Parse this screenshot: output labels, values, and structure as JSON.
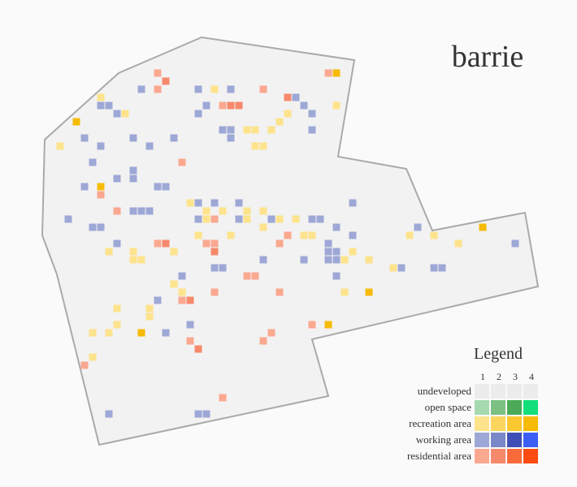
{
  "map": {
    "title": "barrie",
    "boundary_color": "#aaaaaa",
    "fill_color": "#f2f2f2"
  },
  "legend": {
    "title": "Legend",
    "levels": [
      "1",
      "2",
      "3",
      "4"
    ],
    "categories": [
      {
        "key": "undeveloped",
        "label": "undeveloped",
        "colors": [
          "#ececec",
          "#ececec",
          "#ececec",
          "#ececec"
        ]
      },
      {
        "key": "open",
        "label": "open space",
        "colors": [
          "#a6d9ad",
          "#7cc183",
          "#4aaa58",
          "#12df7a"
        ]
      },
      {
        "key": "recreation",
        "label": "recreation area",
        "colors": [
          "#fde38c",
          "#fcd55e",
          "#fbc730",
          "#f6bb07"
        ]
      },
      {
        "key": "working",
        "label": "working area",
        "colors": [
          "#9ea8d6",
          "#7b88c8",
          "#3f4fb5",
          "#3d5ef4"
        ]
      },
      {
        "key": "residential",
        "label": "residential area",
        "colors": [
          "#fba890",
          "#f6896c",
          "#f96a3a",
          "#fb4a12"
        ]
      }
    ]
  },
  "cells": [
    {
      "c": "W",
      "l": 1,
      "g": [
        [
          174,
          110
        ],
        [
          244,
          110
        ],
        [
          284,
          110
        ],
        [
          364,
          120
        ],
        [
          124,
          130
        ],
        [
          134,
          130
        ],
        [
          254,
          130
        ],
        [
          374,
          130
        ],
        [
          144,
          140
        ],
        [
          244,
          140
        ],
        [
          384,
          140
        ],
        [
          274,
          160
        ],
        [
          284,
          160
        ],
        [
          384,
          160
        ],
        [
          104,
          170
        ],
        [
          164,
          170
        ],
        [
          284,
          170
        ],
        [
          214,
          170
        ],
        [
          124,
          180
        ],
        [
          184,
          180
        ],
        [
          114,
          200
        ],
        [
          164,
          210
        ],
        [
          164,
          220
        ],
        [
          144,
          220
        ],
        [
          104,
          230
        ],
        [
          194,
          230
        ],
        [
          204,
          230
        ],
        [
          244,
          250
        ],
        [
          264,
          250
        ],
        [
          294,
          250
        ],
        [
          434,
          250
        ],
        [
          164,
          260
        ],
        [
          174,
          260
        ],
        [
          184,
          260
        ],
        [
          84,
          270
        ],
        [
          244,
          270
        ],
        [
          294,
          270
        ],
        [
          334,
          270
        ],
        [
          384,
          270
        ],
        [
          394,
          270
        ],
        [
          114,
          280
        ],
        [
          124,
          280
        ],
        [
          514,
          280
        ],
        [
          414,
          280
        ],
        [
          434,
          290
        ],
        [
          144,
          300
        ],
        [
          194,
          300
        ],
        [
          404,
          300
        ],
        [
          404,
          310
        ],
        [
          414,
          310
        ],
        [
          404,
          320
        ],
        [
          414,
          320
        ],
        [
          324,
          320
        ],
        [
          374,
          320
        ],
        [
          264,
          330
        ],
        [
          274,
          330
        ],
        [
          494,
          330
        ],
        [
          534,
          330
        ],
        [
          544,
          330
        ],
        [
          634,
          300
        ],
        [
          224,
          340
        ],
        [
          414,
          340
        ],
        [
          194,
          370
        ],
        [
          234,
          400
        ],
        [
          204,
          410
        ],
        [
          134,
          510
        ],
        [
          244,
          510
        ],
        [
          254,
          510
        ]
      ]
    },
    {
      "c": "Y",
      "l": 1,
      "g": [
        [
          264,
          110
        ],
        [
          124,
          120
        ],
        [
          414,
          130
        ],
        [
          154,
          140
        ],
        [
          304,
          160
        ],
        [
          314,
          160
        ],
        [
          334,
          160
        ],
        [
          344,
          150
        ],
        [
          354,
          140
        ],
        [
          314,
          180
        ],
        [
          324,
          180
        ],
        [
          74,
          180
        ],
        [
          234,
          250
        ],
        [
          254,
          260
        ],
        [
          254,
          270
        ],
        [
          274,
          260
        ],
        [
          324,
          260
        ],
        [
          304,
          270
        ],
        [
          344,
          270
        ],
        [
          324,
          280
        ],
        [
          244,
          290
        ],
        [
          254,
          300
        ],
        [
          284,
          290
        ],
        [
          374,
          290
        ],
        [
          384,
          290
        ],
        [
          364,
          270
        ],
        [
          504,
          290
        ],
        [
          534,
          290
        ],
        [
          564,
          300
        ],
        [
          134,
          310
        ],
        [
          164,
          310
        ],
        [
          164,
          320
        ],
        [
          174,
          320
        ],
        [
          214,
          310
        ],
        [
          434,
          310
        ],
        [
          424,
          320
        ],
        [
          454,
          320
        ],
        [
          484,
          330
        ],
        [
          214,
          350
        ],
        [
          224,
          360
        ],
        [
          424,
          360
        ],
        [
          144,
          380
        ],
        [
          184,
          380
        ],
        [
          184,
          390
        ],
        [
          144,
          400
        ],
        [
          114,
          410
        ],
        [
          134,
          410
        ],
        [
          114,
          440
        ],
        [
          304,
          260
        ]
      ]
    },
    {
      "c": "R",
      "l": 1,
      "g": [
        [
          194,
          90
        ],
        [
          194,
          110
        ],
        [
          324,
          110
        ],
        [
          274,
          130
        ],
        [
          144,
          260
        ],
        [
          224,
          200
        ],
        [
          124,
          240
        ],
        [
          264,
          270
        ],
        [
          354,
          290
        ],
        [
          254,
          300
        ],
        [
          264,
          300
        ],
        [
          194,
          300
        ],
        [
          344,
          300
        ],
        [
          314,
          340
        ],
        [
          304,
          340
        ],
        [
          264,
          360
        ],
        [
          344,
          360
        ],
        [
          224,
          370
        ],
        [
          384,
          400
        ],
        [
          334,
          410
        ],
        [
          324,
          420
        ],
        [
          234,
          420
        ],
        [
          104,
          450
        ],
        [
          274,
          490
        ],
        [
          404,
          90
        ]
      ]
    },
    {
      "c": "R",
      "l": 2,
      "g": [
        [
          204,
          100
        ],
        [
          354,
          120
        ],
        [
          284,
          130
        ],
        [
          294,
          130
        ],
        [
          204,
          300
        ],
        [
          264,
          310
        ],
        [
          234,
          370
        ],
        [
          244,
          430
        ]
      ]
    },
    {
      "c": "Y",
      "l": 4,
      "g": [
        [
          94,
          150
        ],
        [
          124,
          230
        ],
        [
          414,
          90
        ],
        [
          594,
          280
        ],
        [
          454,
          360
        ],
        [
          174,
          410
        ],
        [
          404,
          400
        ]
      ]
    }
  ]
}
